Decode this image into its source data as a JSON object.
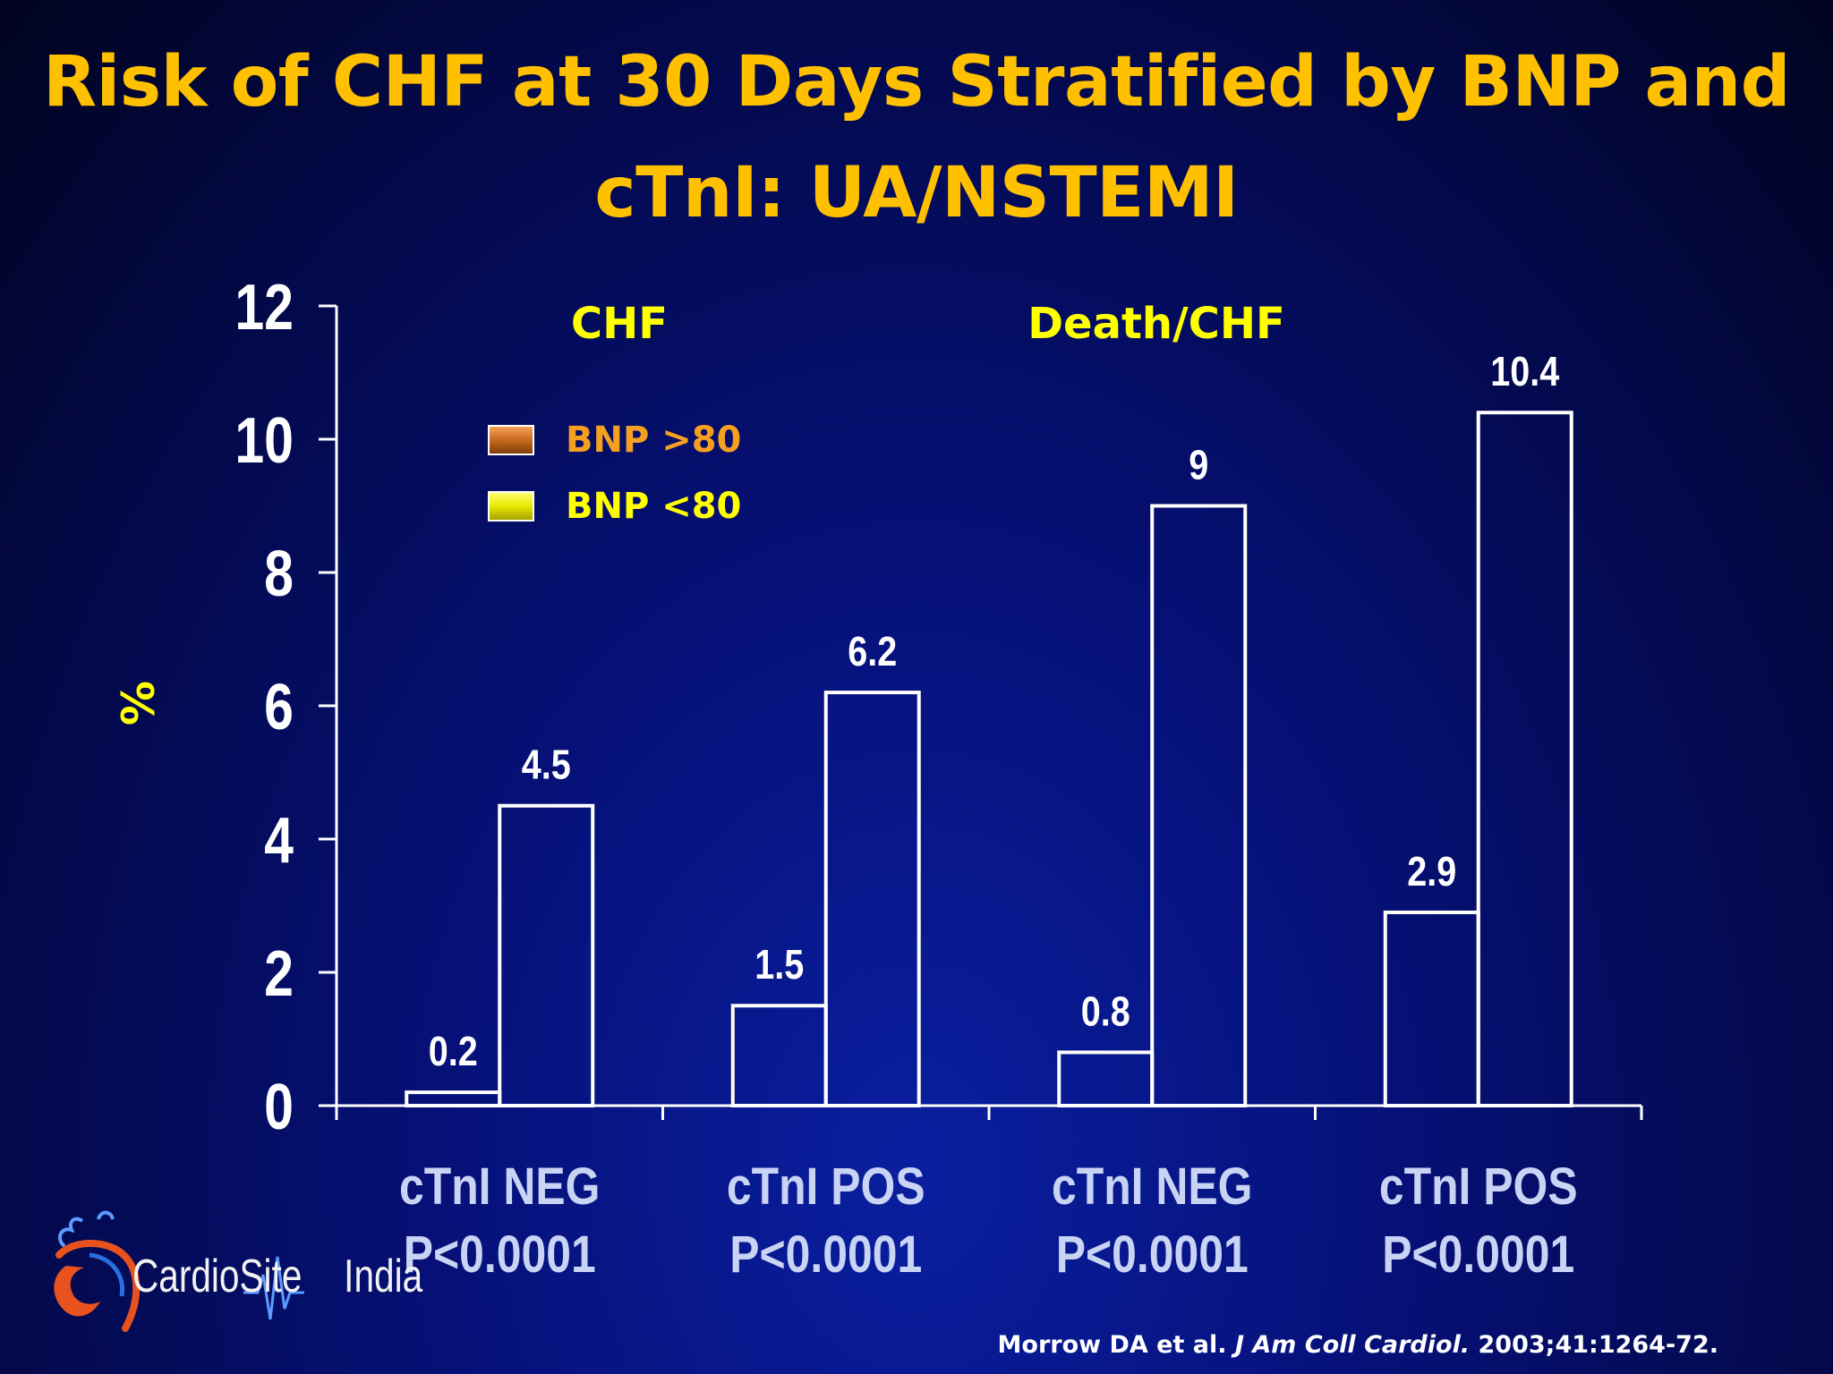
{
  "title_line1": "Risk of CHF at 30 Days Stratified by BNP and",
  "title_line2": "cTnI:  UA/NSTEMI",
  "logo": {
    "name": "CardioSite",
    "name2": "India"
  },
  "citation": {
    "authors": "Morrow DA et al.",
    "journal": "J Am Coll Cardiol.",
    "ref": "2003;41:1264-72."
  },
  "colors": {
    "background": "#06117a",
    "title": "#ffc000",
    "label_yellow": "#ffff00",
    "label_orange": "#f5a020",
    "axis_text": "#ffffff",
    "category_text": "#c9d4f5"
  },
  "chart_data": {
    "type": "bar",
    "title": "Risk of CHF at 30 Days Stratified by BNP and cTnI:  UA/NSTEMI",
    "ylabel": "%",
    "ylim": [
      0,
      12
    ],
    "yticks": [
      0,
      2,
      4,
      6,
      8,
      10,
      12
    ],
    "groups": [
      "CHF",
      "Death/CHF"
    ],
    "categories": [
      {
        "label": "cTnI NEG",
        "p": "P<0.0001",
        "group": "CHF"
      },
      {
        "label": "cTnI POS",
        "p": "P<0.0001",
        "group": "CHF"
      },
      {
        "label": "cTnI NEG",
        "p": "P<0.0001",
        "group": "Death/CHF"
      },
      {
        "label": "cTnI POS",
        "p": "P<0.0001",
        "group": "Death/CHF"
      }
    ],
    "series": [
      {
        "name": "BNP <80",
        "values": [
          0.2,
          1.5,
          0.8,
          2.9
        ],
        "labels": [
          "0.2",
          "1.5",
          "0.8",
          "2.9"
        ]
      },
      {
        "name": "BNP >80",
        "values": [
          4.5,
          6.2,
          9,
          10.4
        ],
        "labels": [
          "4.5",
          "6.2",
          "9",
          "10.4"
        ]
      }
    ],
    "legend": [
      {
        "name": "BNP >80",
        "swatch": "orange"
      },
      {
        "name": "BNP <80",
        "swatch": "yellow"
      }
    ],
    "legend_position": "top-left",
    "grid": false
  }
}
